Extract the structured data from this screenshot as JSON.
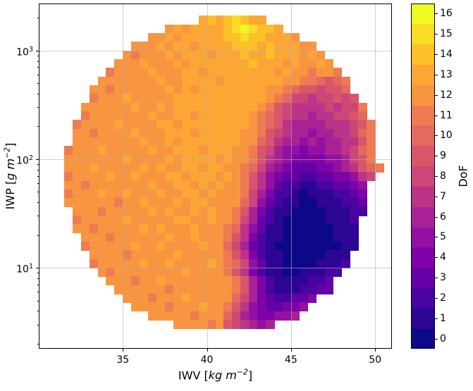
{
  "figure": {
    "background": "#ffffff"
  },
  "chart_data": {
    "type": "heatmap",
    "title": "",
    "xlabel": "IWV [kg m−2]",
    "ylabel": "IWP [g m−2]",
    "colorbar_label": "DoF",
    "x_axis": {
      "name": "IWV",
      "unit_open": "[",
      "unit_body": "kg m",
      "unit_sup": "−2",
      "unit_close": "]",
      "scale": "linear",
      "lim": [
        30,
        51
      ],
      "ticks": [
        {
          "value": 35,
          "label": "35"
        },
        {
          "value": 40,
          "label": "40"
        },
        {
          "value": 45,
          "label": "45"
        },
        {
          "value": 50,
          "label": "50"
        }
      ]
    },
    "y_axis": {
      "name": "IWP",
      "unit_open": "[",
      "unit_body": "g m",
      "unit_sup": "−2",
      "unit_close": "]",
      "scale": "log",
      "lim": [
        1.8,
        2700
      ],
      "ticks": [
        {
          "value": 10,
          "base": "10",
          "sup": "1"
        },
        {
          "value": 100,
          "base": "10",
          "sup": "2"
        },
        {
          "value": 1000,
          "base": "10",
          "sup": "3"
        }
      ]
    },
    "grid_lines": {
      "x": [
        35,
        40,
        45,
        50
      ],
      "y": [
        10,
        100,
        1000
      ]
    },
    "colorbar": {
      "label": "DoF",
      "min": 0,
      "max": 16,
      "ticks": [
        "0",
        "1",
        "2",
        "3",
        "4",
        "5",
        "6",
        "7",
        "8",
        "9",
        "10",
        "11",
        "12",
        "13",
        "14",
        "15",
        "16"
      ],
      "palette": [
        "#0d0887",
        "#2d0594",
        "#4903a0",
        "#6500a7",
        "#7e03a8",
        "#940fa3",
        "#a82296",
        "#bb3488",
        "#cc4778",
        "#d9566a",
        "#e4695e",
        "#ee7b51",
        "#f89540",
        "#fca636",
        "#fdc029",
        "#f8dc25",
        "#f0f921"
      ]
    },
    "cells": {
      "x_start": 31.5,
      "x_step": 0.5,
      "log10_y_top": 3.32,
      "log10_y_step": 0.08,
      "value_encoding": "each char is DoF of one bin: '0'-'9' = 0-9, 'A'-'G' = 10-16, '.' = no data",
      "rows": [
        "................DEDEFEDD..............",
        "............CDCDDDDEFGFEED............",
        "..........CCDCDDDDDEEFEEDDDC..........",
        "........CCCDCDDCDDDDEEEDEDDDCC........",
        ".......CBCCCDCDDDCDDDEDDEDDDCDC.......",
        "......CCCDCCCDCDDDDDDDEDDDCDCCDC......",
        ".....BCCCCDCCCDDCDDDDDDDDCDCCBCCB.....",
        "....CCCCCCCDCCDDDDCDDDDDDDCCBBA9AB....",
        "...CCBCCCCCCDCDCDDDDDDDDCCBA99899A....",
        "...BCCCDCCCCCDDDDDDDDDDDCBA88788989...",
        "..CCCCCCDCCDCDDDDDDDDDDCB9877778788B..",
        "..BCCCCCCCDCCDDCDDDDDDCBA9877677889A..",
        ".BCCCCDCCCCDDCDDDDDDDDCBA97666677789B.",
        ".CCBCCCCDCCCDDDCDDDDDCCB98766566778AB.",
        ".CCCCCCCCDCCDCDDDDDDDCCA976656566779B.",
        "BCCCDCCCCCDCCDDDCDDDCCB986554556678AB.",
        "CCCCCCCDCCCCDCDDDDCDCCB9765444455689B.",
        "CCCDCCCCCDCDCCDDCDDCCBA8654333445679AB",
        "BCCCCDCCDCCCDDCDDDCDCB975433223344578.",
        "CCBCCCCCCCDCCDDCDCDCCB97532211223345..",
        "BCCCDCCDCCCDCCDDCDCCCB86422101112234..",
        "CCCCCCBCCDCCCDCDDCCCCA85321100111223..",
        ".CCCBCCCCCDCDCCDCDCCB964211000011122..",
        ".BCCCCCDCCCCCDDCCDCCB86321000001112...",
        ".CCBCCCCCDCDCCCDCCCBA75311000000111...",
        "..CCCBCCCCCCDCCDCCCB974211000000111...",
        "..BCCCCCDCCDCCCCDCCA863210000000011...",
        "...CCCCBCCCCCDCCCCCB97421100000111....",
        "...BCCCCCDCCDCCCCDCBA8531100001112....",
        "....CBCCCCCCCCDCCCCB9742110011122.....",
        ".....CCCBCCDCCCCCCCCB96421111223......",
        "......CCCCCCBCCCCCCCB96421112233......",
        ".......CCCBCCCDCCCCCA864322334........",
        "........CCCCBCCCDCCB975433445.........",
        "..........CCCCCBCCCA86544556..........",
        ".............CCCCBC987656............."
      ]
    }
  }
}
